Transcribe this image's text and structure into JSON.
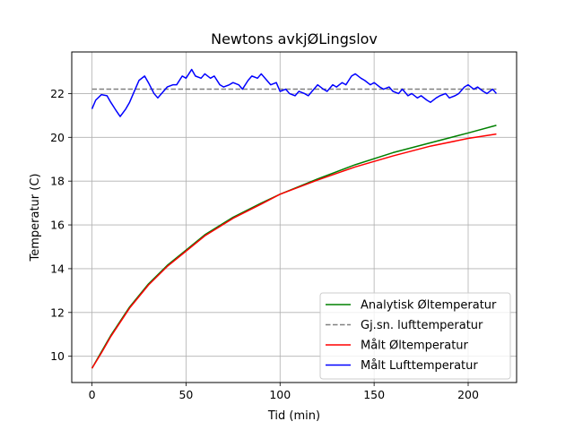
{
  "chart_data": {
    "type": "line",
    "title": "Newtons avkjØLingslov",
    "xlabel": "Tid (min)",
    "ylabel": "Temperatur (C)",
    "xlim": [
      -10.75,
      225.75
    ],
    "ylim": [
      8.8,
      23.9
    ],
    "xticks": [
      0,
      50,
      100,
      150,
      200
    ],
    "yticks": [
      10,
      12,
      14,
      16,
      18,
      20,
      22
    ],
    "grid": true,
    "legend_position": "lower right",
    "series": [
      {
        "name": "Analytisk Øltemperatur",
        "color": "#008000",
        "style": "solid",
        "x": [
          0,
          5,
          10,
          15,
          20,
          30,
          40,
          50,
          60,
          75,
          90,
          100,
          120,
          140,
          160,
          180,
          200,
          215
        ],
        "y": [
          9.45,
          10.2,
          10.95,
          11.6,
          12.25,
          13.3,
          14.15,
          14.85,
          15.55,
          16.35,
          17.0,
          17.4,
          18.1,
          18.75,
          19.3,
          19.75,
          20.2,
          20.55
        ]
      },
      {
        "name": "Gj.sn. lufttemperatur",
        "color": "#808080",
        "style": "dashed",
        "x": [
          0,
          215
        ],
        "y": [
          22.2,
          22.2
        ]
      },
      {
        "name": "Målt Øltemperatur",
        "color": "#ff0000",
        "style": "solid",
        "x": [
          0,
          5,
          10,
          15,
          20,
          30,
          40,
          50,
          60,
          75,
          90,
          100,
          120,
          140,
          160,
          180,
          200,
          215
        ],
        "y": [
          9.45,
          10.15,
          10.9,
          11.55,
          12.2,
          13.25,
          14.1,
          14.8,
          15.5,
          16.3,
          16.95,
          17.4,
          18.05,
          18.65,
          19.15,
          19.6,
          19.95,
          20.15
        ]
      },
      {
        "name": "Målt Lufttemperatur",
        "color": "#0000ff",
        "style": "solid",
        "x": [
          0,
          2,
          5,
          8,
          10,
          13,
          15,
          18,
          20,
          23,
          25,
          28,
          30,
          33,
          35,
          38,
          40,
          43,
          45,
          48,
          50,
          53,
          55,
          58,
          60,
          63,
          65,
          68,
          70,
          73,
          75,
          78,
          80,
          83,
          85,
          88,
          90,
          93,
          95,
          98,
          100,
          103,
          105,
          108,
          110,
          113,
          115,
          118,
          120,
          123,
          125,
          128,
          130,
          133,
          135,
          138,
          140,
          143,
          145,
          148,
          150,
          153,
          155,
          158,
          160,
          163,
          165,
          168,
          170,
          173,
          175,
          178,
          180,
          183,
          185,
          188,
          190,
          193,
          195,
          198,
          200,
          203,
          205,
          208,
          210,
          213,
          215
        ],
        "y": [
          21.3,
          21.7,
          21.95,
          21.9,
          21.6,
          21.2,
          20.95,
          21.3,
          21.6,
          22.2,
          22.6,
          22.8,
          22.5,
          22.0,
          21.8,
          22.1,
          22.3,
          22.4,
          22.4,
          22.8,
          22.7,
          23.1,
          22.8,
          22.7,
          22.9,
          22.7,
          22.8,
          22.4,
          22.3,
          22.4,
          22.5,
          22.4,
          22.2,
          22.6,
          22.8,
          22.7,
          22.9,
          22.6,
          22.4,
          22.5,
          22.1,
          22.2,
          22.0,
          21.9,
          22.1,
          22.0,
          21.9,
          22.2,
          22.4,
          22.2,
          22.1,
          22.4,
          22.3,
          22.5,
          22.4,
          22.8,
          22.9,
          22.7,
          22.6,
          22.4,
          22.5,
          22.3,
          22.2,
          22.3,
          22.1,
          22.0,
          22.2,
          21.9,
          22.0,
          21.8,
          21.9,
          21.7,
          21.6,
          21.8,
          21.9,
          22.0,
          21.8,
          21.9,
          22.0,
          22.3,
          22.4,
          22.2,
          22.3,
          22.1,
          22.0,
          22.2,
          22.0
        ]
      }
    ]
  }
}
